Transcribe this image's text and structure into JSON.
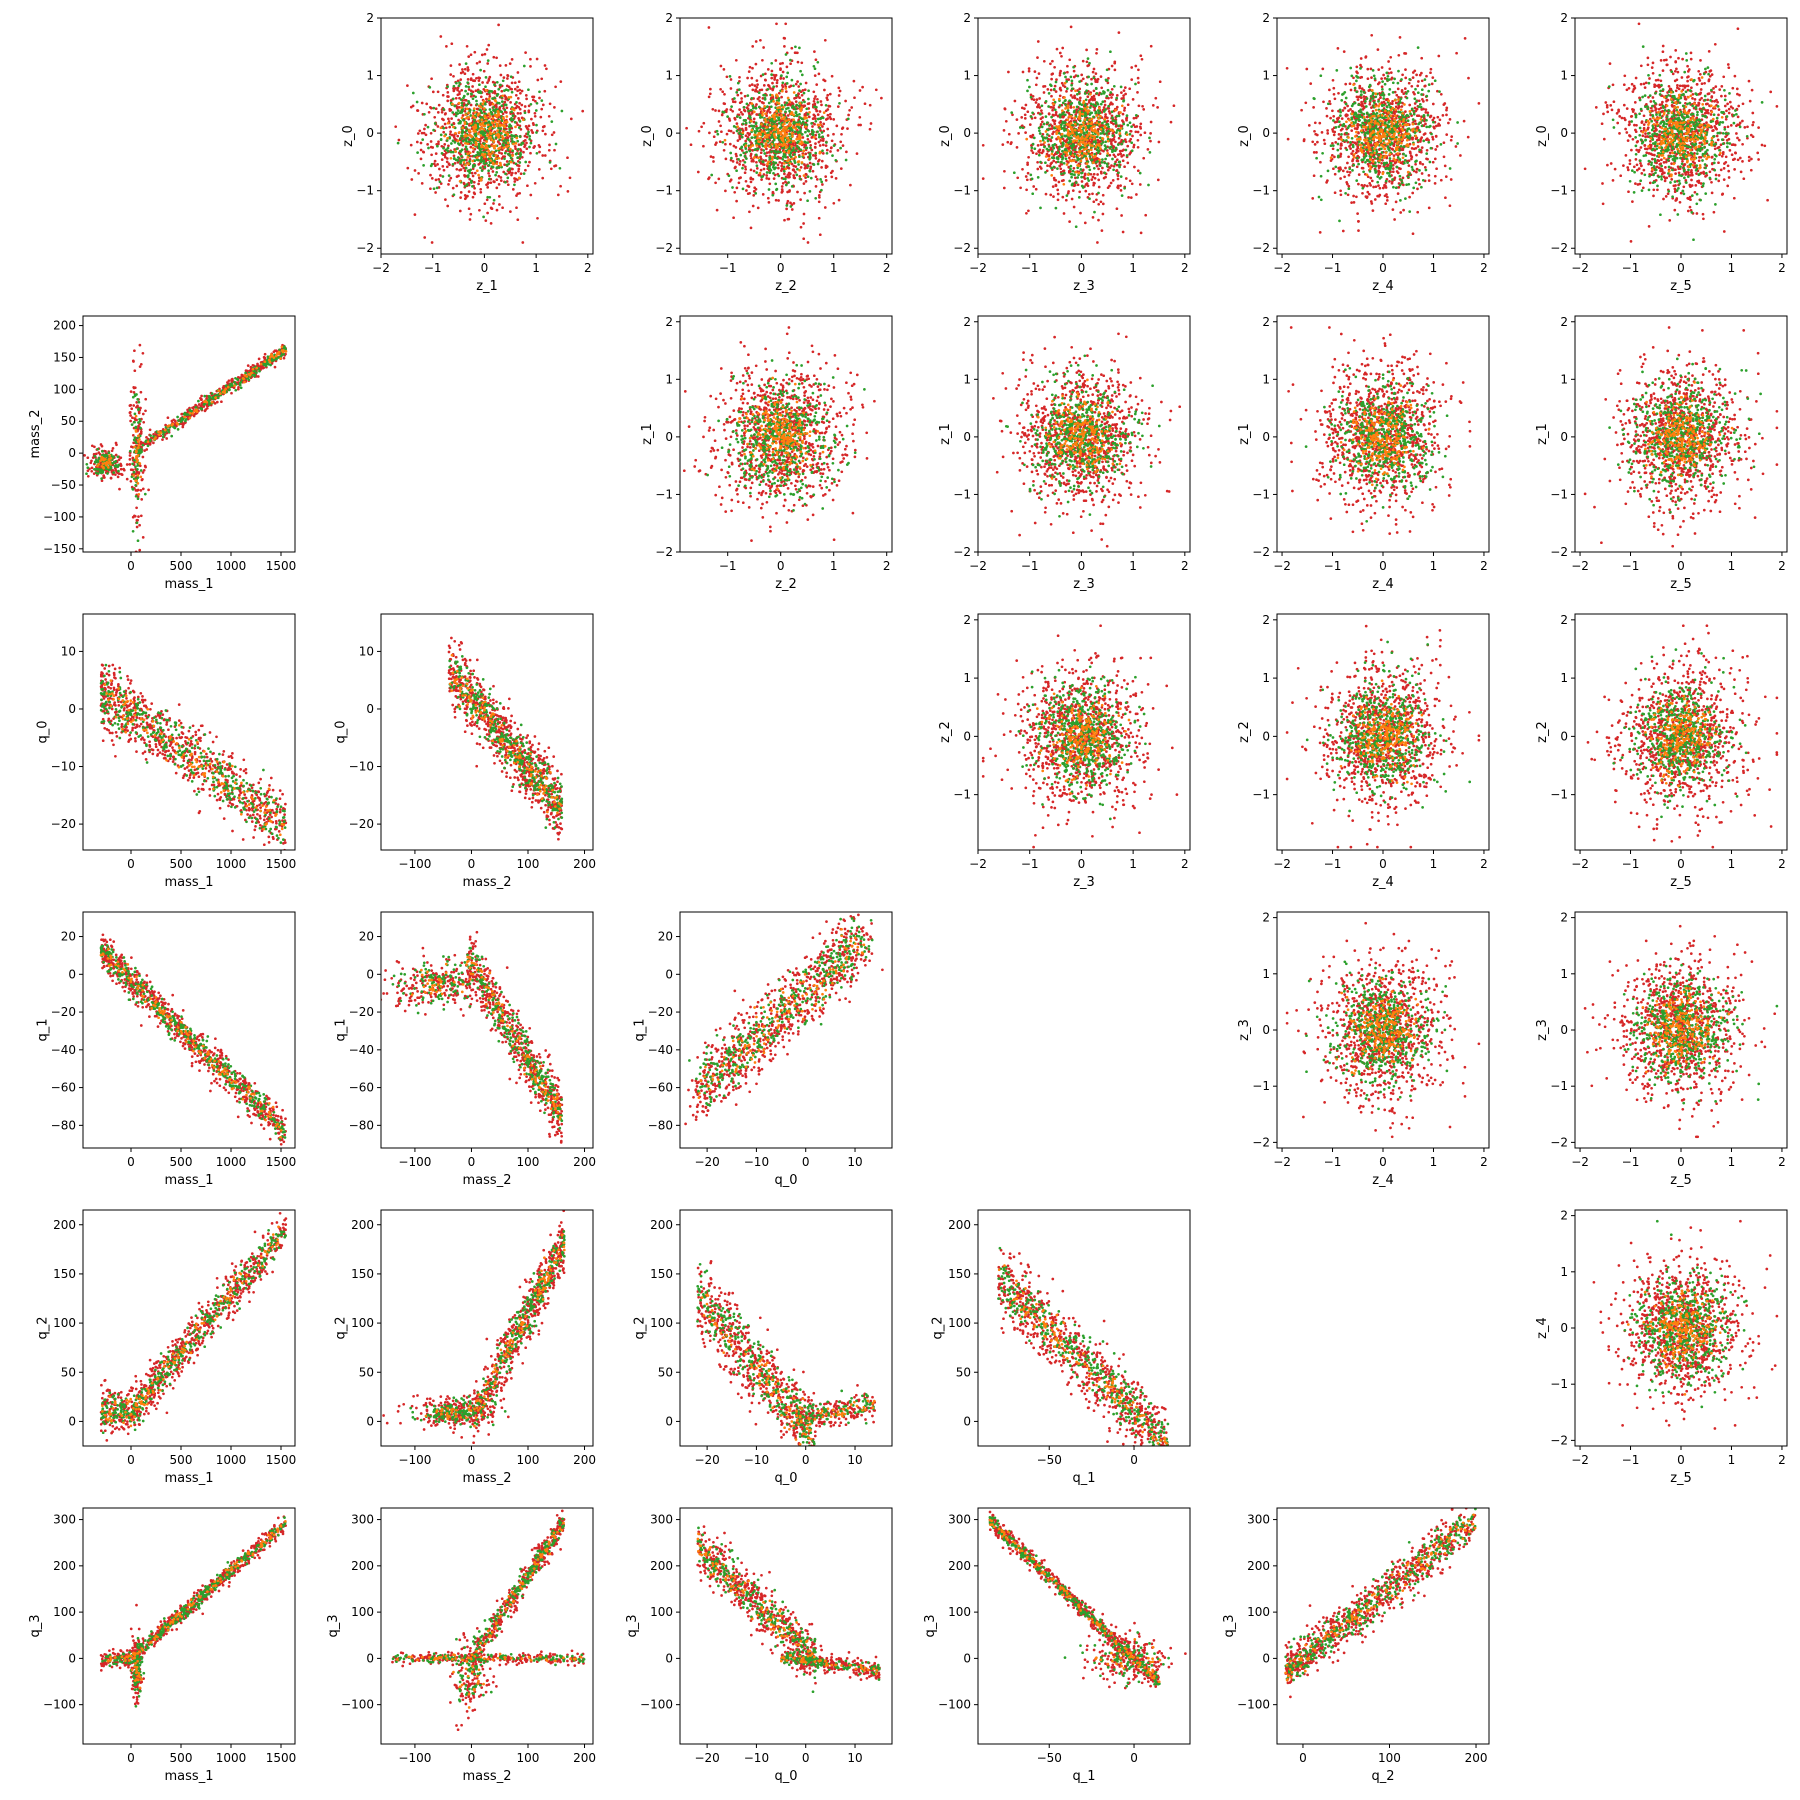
{
  "chart_data": {
    "type": "scatter",
    "layout": "triangular pair-plot grid (6 rows x 6 columns); lower triangle: physical parameters, upper triangle: latent z parameters; diagonal empty",
    "marker": "small dots",
    "grid": false,
    "legend": "none",
    "series": [
      {
        "color": "#d62728"
      },
      {
        "color": "#2ca02c"
      },
      {
        "color": "#ff7f0e"
      }
    ],
    "subplots": [
      {
        "id": "z1-z0",
        "row": 0,
        "col": 1,
        "xlabel": "z_1",
        "ylabel": "z_0",
        "xlim": [
          -2.0,
          2.1
        ],
        "ylim": [
          -2.1,
          2.0
        ],
        "xticks": [
          -2,
          -1,
          0,
          1,
          2
        ],
        "yticks": [
          -2,
          -1,
          0,
          1,
          2
        ],
        "pattern": "iso",
        "mx": 0,
        "my": 0,
        "sx": 0.62,
        "sy": 0.62
      },
      {
        "id": "z2-z0",
        "row": 0,
        "col": 2,
        "xlabel": "z_2",
        "ylabel": "z_0",
        "xlim": [
          -1.9,
          2.1
        ],
        "ylim": [
          -2.1,
          2.0
        ],
        "xticks": [
          -1,
          0,
          1,
          2
        ],
        "yticks": [
          -2,
          -1,
          0,
          1,
          2
        ],
        "pattern": "iso",
        "mx": 0,
        "my": 0,
        "sx": 0.62,
        "sy": 0.62
      },
      {
        "id": "z3-z0",
        "row": 0,
        "col": 3,
        "xlabel": "z_3",
        "ylabel": "z_0",
        "xlim": [
          -2.0,
          2.1
        ],
        "ylim": [
          -2.1,
          2.0
        ],
        "xticks": [
          -2,
          -1,
          0,
          1,
          2
        ],
        "yticks": [
          -2,
          -1,
          0,
          1,
          2
        ],
        "pattern": "iso",
        "mx": 0,
        "my": 0,
        "sx": 0.62,
        "sy": 0.62
      },
      {
        "id": "z4-z0",
        "row": 0,
        "col": 4,
        "xlabel": "z_4",
        "ylabel": "z_0",
        "xlim": [
          -2.1,
          2.1
        ],
        "ylim": [
          -2.1,
          2.0
        ],
        "xticks": [
          -2,
          -1,
          0,
          1,
          2
        ],
        "yticks": [
          -2,
          -1,
          0,
          1,
          2
        ],
        "pattern": "iso",
        "mx": 0,
        "my": 0,
        "sx": 0.62,
        "sy": 0.62
      },
      {
        "id": "z5-z0",
        "row": 0,
        "col": 5,
        "xlabel": "z_5",
        "ylabel": "z_0",
        "xlim": [
          -2.1,
          2.1
        ],
        "ylim": [
          -2.1,
          2.0
        ],
        "xticks": [
          -2,
          -1,
          0,
          1,
          2
        ],
        "yticks": [
          -2,
          -1,
          0,
          1,
          2
        ],
        "pattern": "iso",
        "mx": 0,
        "my": 0,
        "sx": 0.62,
        "sy": 0.62
      },
      {
        "id": "mass1-mass2",
        "row": 1,
        "col": 0,
        "xlabel": "mass_1",
        "ylabel": "mass_2",
        "xlim": [
          -480,
          1640
        ],
        "ylim": [
          -155,
          215
        ],
        "xticks": [
          0,
          500,
          1000,
          1500
        ],
        "yticks": [
          -150,
          -100,
          -50,
          0,
          50,
          100,
          150,
          200
        ],
        "pattern": "mass1_mass2"
      },
      {
        "id": "z2-z1",
        "row": 1,
        "col": 2,
        "xlabel": "z_2",
        "ylabel": "z_1",
        "xlim": [
          -1.9,
          2.1
        ],
        "ylim": [
          -2.0,
          2.1
        ],
        "xticks": [
          -1,
          0,
          1,
          2
        ],
        "yticks": [
          -2,
          -1,
          0,
          1,
          2
        ],
        "pattern": "iso",
        "mx": 0,
        "my": 0,
        "sx": 0.62,
        "sy": 0.62
      },
      {
        "id": "z3-z1",
        "row": 1,
        "col": 3,
        "xlabel": "z_3",
        "ylabel": "z_1",
        "xlim": [
          -2.0,
          2.1
        ],
        "ylim": [
          -2.0,
          2.1
        ],
        "xticks": [
          -2,
          -1,
          0,
          1,
          2
        ],
        "yticks": [
          -2,
          -1,
          0,
          1,
          2
        ],
        "pattern": "iso",
        "mx": 0,
        "my": 0,
        "sx": 0.62,
        "sy": 0.62
      },
      {
        "id": "z4-z1",
        "row": 1,
        "col": 4,
        "xlabel": "z_4",
        "ylabel": "z_1",
        "xlim": [
          -2.1,
          2.1
        ],
        "ylim": [
          -2.0,
          2.1
        ],
        "xticks": [
          -2,
          -1,
          0,
          1,
          2
        ],
        "yticks": [
          -2,
          -1,
          0,
          1,
          2
        ],
        "pattern": "iso",
        "mx": 0,
        "my": 0,
        "sx": 0.62,
        "sy": 0.62
      },
      {
        "id": "z5-z1",
        "row": 1,
        "col": 5,
        "xlabel": "z_5",
        "ylabel": "z_1",
        "xlim": [
          -2.1,
          2.1
        ],
        "ylim": [
          -2.0,
          2.1
        ],
        "xticks": [
          -2,
          -1,
          0,
          1,
          2
        ],
        "yticks": [
          -2,
          -1,
          0,
          1,
          2
        ],
        "pattern": "iso",
        "mx": 0,
        "my": 0,
        "sx": 0.62,
        "sy": 0.62
      },
      {
        "id": "mass1-q0",
        "row": 2,
        "col": 0,
        "xlabel": "mass_1",
        "ylabel": "q_0",
        "xlim": [
          -480,
          1640
        ],
        "ylim": [
          -24.5,
          16.5
        ],
        "xticks": [
          0,
          500,
          1000,
          1500
        ],
        "yticks": [
          -20,
          -10,
          0,
          10
        ],
        "pattern": "mass1_q0"
      },
      {
        "id": "mass2-q0",
        "row": 2,
        "col": 1,
        "xlabel": "mass_2",
        "ylabel": "q_0",
        "xlim": [
          -160,
          215
        ],
        "ylim": [
          -24.5,
          16.5
        ],
        "xticks": [
          -100,
          0,
          100,
          200
        ],
        "yticks": [
          -20,
          -10,
          0,
          10
        ],
        "pattern": "mass2_q0"
      },
      {
        "id": "z3-z2",
        "row": 2,
        "col": 3,
        "xlabel": "z_3",
        "ylabel": "z_2",
        "xlim": [
          -2.0,
          2.1
        ],
        "ylim": [
          -1.95,
          2.1
        ],
        "xticks": [
          -2,
          -1,
          0,
          1,
          2
        ],
        "yticks": [
          -1,
          0,
          1,
          2
        ],
        "pattern": "iso",
        "mx": 0,
        "my": 0,
        "sx": 0.62,
        "sy": 0.62
      },
      {
        "id": "z4-z2",
        "row": 2,
        "col": 4,
        "xlabel": "z_4",
        "ylabel": "z_2",
        "xlim": [
          -2.1,
          2.1
        ],
        "ylim": [
          -1.95,
          2.1
        ],
        "xticks": [
          -2,
          -1,
          0,
          1,
          2
        ],
        "yticks": [
          -1,
          0,
          1,
          2
        ],
        "pattern": "iso",
        "mx": 0,
        "my": 0,
        "sx": 0.62,
        "sy": 0.62
      },
      {
        "id": "z5-z2",
        "row": 2,
        "col": 5,
        "xlabel": "z_5",
        "ylabel": "z_2",
        "xlim": [
          -2.1,
          2.1
        ],
        "ylim": [
          -1.95,
          2.1
        ],
        "xticks": [
          -2,
          -1,
          0,
          1,
          2
        ],
        "yticks": [
          -1,
          0,
          1,
          2
        ],
        "pattern": "iso",
        "mx": 0,
        "my": 0,
        "sx": 0.62,
        "sy": 0.62
      },
      {
        "id": "mass1-q1",
        "row": 3,
        "col": 0,
        "xlabel": "mass_1",
        "ylabel": "q_1",
        "xlim": [
          -480,
          1640
        ],
        "ylim": [
          -92,
          33
        ],
        "xticks": [
          0,
          500,
          1000,
          1500
        ],
        "yticks": [
          -80,
          -60,
          -40,
          -20,
          0,
          20
        ],
        "pattern": "mass1_q1"
      },
      {
        "id": "mass2-q1",
        "row": 3,
        "col": 1,
        "xlabel": "mass_2",
        "ylabel": "q_1",
        "xlim": [
          -160,
          215
        ],
        "ylim": [
          -92,
          33
        ],
        "xticks": [
          -100,
          0,
          100,
          200
        ],
        "yticks": [
          -80,
          -60,
          -40,
          -20,
          0,
          20
        ],
        "pattern": "mass2_q1"
      },
      {
        "id": "q0-q1",
        "row": 3,
        "col": 2,
        "xlabel": "q_0",
        "ylabel": "q_1",
        "xlim": [
          -25.5,
          17.5
        ],
        "ylim": [
          -92,
          33
        ],
        "xticks": [
          -20,
          -10,
          0,
          10
        ],
        "yticks": [
          -80,
          -60,
          -40,
          -20,
          0,
          20
        ],
        "pattern": "q0_q1"
      },
      {
        "id": "z4-z3",
        "row": 3,
        "col": 4,
        "xlabel": "z_4",
        "ylabel": "z_3",
        "xlim": [
          -2.1,
          2.1
        ],
        "ylim": [
          -2.1,
          2.1
        ],
        "xticks": [
          -2,
          -1,
          0,
          1,
          2
        ],
        "yticks": [
          -2,
          -1,
          0,
          1,
          2
        ],
        "pattern": "iso",
        "mx": 0,
        "my": 0,
        "sx": 0.62,
        "sy": 0.62
      },
      {
        "id": "z5-z3",
        "row": 3,
        "col": 5,
        "xlabel": "z_5",
        "ylabel": "z_3",
        "xlim": [
          -2.1,
          2.1
        ],
        "ylim": [
          -2.1,
          2.1
        ],
        "xticks": [
          -2,
          -1,
          0,
          1,
          2
        ],
        "yticks": [
          -2,
          -1,
          0,
          1,
          2
        ],
        "pattern": "iso",
        "mx": 0,
        "my": 0,
        "sx": 0.62,
        "sy": 0.62
      },
      {
        "id": "mass1-q2",
        "row": 4,
        "col": 0,
        "xlabel": "mass_1",
        "ylabel": "q_2",
        "xlim": [
          -480,
          1640
        ],
        "ylim": [
          -25,
          215
        ],
        "xticks": [
          0,
          500,
          1000,
          1500
        ],
        "yticks": [
          0,
          50,
          100,
          150,
          200
        ],
        "pattern": "mass1_q2"
      },
      {
        "id": "mass2-q2",
        "row": 4,
        "col": 1,
        "xlabel": "mass_2",
        "ylabel": "q_2",
        "xlim": [
          -160,
          215
        ],
        "ylim": [
          -25,
          215
        ],
        "xticks": [
          -100,
          0,
          100,
          200
        ],
        "yticks": [
          0,
          50,
          100,
          150,
          200
        ],
        "pattern": "mass2_q2"
      },
      {
        "id": "q0-q2",
        "row": 4,
        "col": 2,
        "xlabel": "q_0",
        "ylabel": "q_2",
        "xlim": [
          -25.5,
          17.5
        ],
        "ylim": [
          -25,
          215
        ],
        "xticks": [
          -20,
          -10,
          0,
          10
        ],
        "yticks": [
          0,
          50,
          100,
          150,
          200
        ],
        "pattern": "q0_q2"
      },
      {
        "id": "q1-q2",
        "row": 4,
        "col": 3,
        "xlabel": "q_1",
        "ylabel": "q_2",
        "xlim": [
          -92,
          33
        ],
        "ylim": [
          -25,
          215
        ],
        "xticks": [
          -50,
          0
        ],
        "yticks": [
          0,
          50,
          100,
          150,
          200
        ],
        "pattern": "q1_q2"
      },
      {
        "id": "z5-z4",
        "row": 4,
        "col": 5,
        "xlabel": "z_5",
        "ylabel": "z_4",
        "xlim": [
          -2.1,
          2.1
        ],
        "ylim": [
          -2.1,
          2.1
        ],
        "xticks": [
          -2,
          -1,
          0,
          1,
          2
        ],
        "yticks": [
          -2,
          -1,
          0,
          1,
          2
        ],
        "pattern": "iso",
        "mx": 0,
        "my": 0,
        "sx": 0.62,
        "sy": 0.62
      },
      {
        "id": "mass1-q3",
        "row": 5,
        "col": 0,
        "xlabel": "mass_1",
        "ylabel": "q_3",
        "xlim": [
          -480,
          1640
        ],
        "ylim": [
          -185,
          325
        ],
        "xticks": [
          0,
          500,
          1000,
          1500
        ],
        "yticks": [
          -100,
          0,
          100,
          200,
          300
        ],
        "pattern": "mass1_q3"
      },
      {
        "id": "mass2-q3",
        "row": 5,
        "col": 1,
        "xlabel": "mass_2",
        "ylabel": "q_3",
        "xlim": [
          -160,
          215
        ],
        "ylim": [
          -185,
          325
        ],
        "xticks": [
          -100,
          0,
          100,
          200
        ],
        "yticks": [
          -100,
          0,
          100,
          200,
          300
        ],
        "pattern": "mass2_q3"
      },
      {
        "id": "q0-q3",
        "row": 5,
        "col": 2,
        "xlabel": "q_0",
        "ylabel": "q_3",
        "xlim": [
          -25.5,
          17.5
        ],
        "ylim": [
          -185,
          325
        ],
        "xticks": [
          -20,
          -10,
          0,
          10
        ],
        "yticks": [
          -100,
          0,
          100,
          200,
          300
        ],
        "pattern": "q0_q3"
      },
      {
        "id": "q1-q3",
        "row": 5,
        "col": 3,
        "xlabel": "q_1",
        "ylabel": "q_3",
        "xlim": [
          -92,
          33
        ],
        "ylim": [
          -185,
          325
        ],
        "xticks": [
          -50,
          0
        ],
        "yticks": [
          -100,
          0,
          100,
          200,
          300
        ],
        "pattern": "q1_q3"
      },
      {
        "id": "q2-q3",
        "row": 5,
        "col": 4,
        "xlabel": "q_2",
        "ylabel": "q_3",
        "xlim": [
          -30,
          215
        ],
        "ylim": [
          -185,
          325
        ],
        "xticks": [
          0,
          100,
          200
        ],
        "yticks": [
          -100,
          0,
          100,
          200,
          300
        ],
        "pattern": "q2_q3"
      }
    ]
  }
}
